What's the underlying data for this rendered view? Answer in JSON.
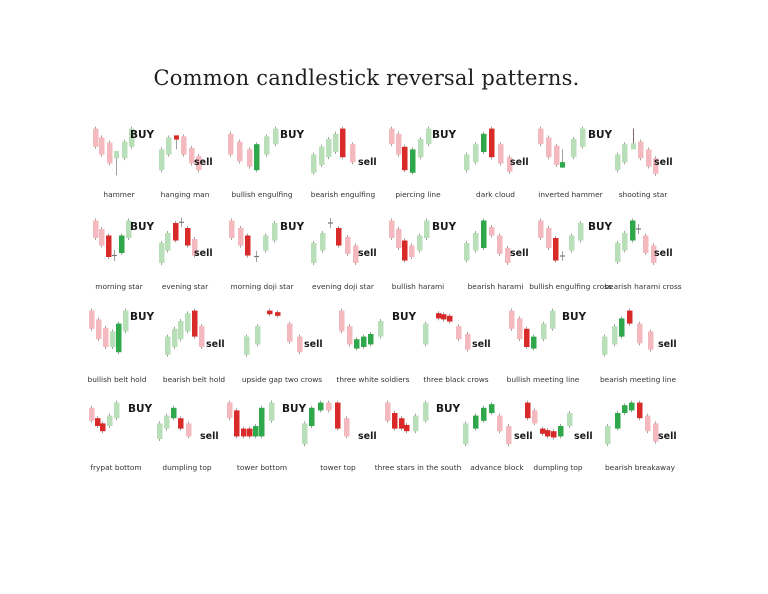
{
  "title": "Common candlestick reversal patterns.",
  "colors": {
    "bull_light": "#b9dfb9",
    "bull_dark": "#2ea84a",
    "bear_light": "#f4b8bf",
    "bear_dark": "#d92a2a",
    "wick": "#888888"
  },
  "signals": {
    "buy": "BUY",
    "sell": "sell"
  },
  "patterns": [
    {
      "label": "hammer",
      "signal": "buy"
    },
    {
      "label": "hanging man",
      "signal": "sell"
    },
    {
      "label": "bullish engulfing",
      "signal": "buy"
    },
    {
      "label": "bearish engulfing",
      "signal": "sell"
    },
    {
      "label": "piercing line",
      "signal": "buy"
    },
    {
      "label": "dark cloud",
      "signal": "sell"
    },
    {
      "label": "inverted hammer",
      "signal": "buy"
    },
    {
      "label": "shooting star",
      "signal": "sell"
    },
    {
      "label": "morning star",
      "signal": "buy"
    },
    {
      "label": "evening star",
      "signal": "sell"
    },
    {
      "label": "morning doji star",
      "signal": "buy"
    },
    {
      "label": "evening doji star",
      "signal": "sell"
    },
    {
      "label": "bullish harami",
      "signal": "buy"
    },
    {
      "label": "bearish harami",
      "signal": "sell"
    },
    {
      "label": "bullish engulfing cross",
      "signal": "buy"
    },
    {
      "label": "bearish harami cross",
      "signal": "sell"
    },
    {
      "label": "bullish belt hold",
      "signal": "buy"
    },
    {
      "label": "bearish belt hold",
      "signal": "sell"
    },
    {
      "label": "upside gap two crows",
      "signal": "sell"
    },
    {
      "label": "three white soldiers",
      "signal": "buy"
    },
    {
      "label": "three black crows",
      "signal": "sell"
    },
    {
      "label": "bullish meeting line",
      "signal": "buy"
    },
    {
      "label": "bearish meeting line",
      "signal": "sell"
    },
    {
      "label": "frypat bottom",
      "signal": "buy"
    },
    {
      "label": "dumpling top",
      "signal": "sell"
    },
    {
      "label": "tower bottom",
      "signal": "buy"
    },
    {
      "label": "tower top",
      "signal": "sell"
    },
    {
      "label": "three stars in the south",
      "signal": "buy"
    },
    {
      "label": "advance block",
      "signal": "sell"
    },
    {
      "label": "dumpling top",
      "signal": "sell"
    },
    {
      "label": "bearish breakaway",
      "signal": "sell"
    }
  ]
}
